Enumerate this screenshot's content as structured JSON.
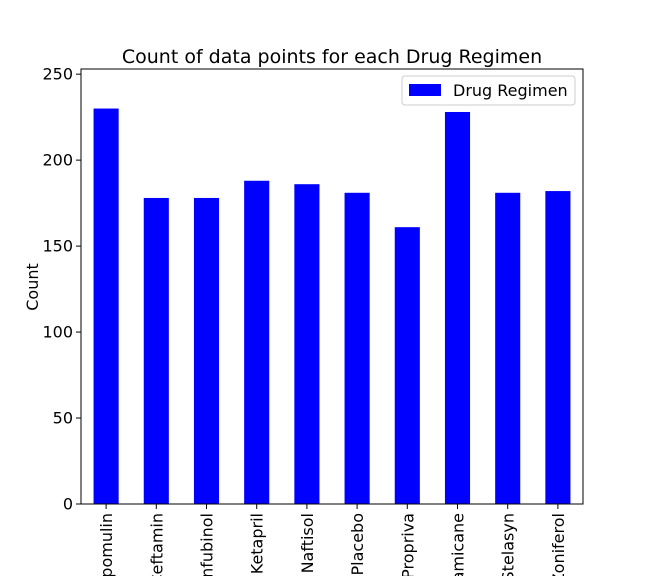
{
  "chart_data": {
    "type": "bar",
    "title": "Count of data points for each Drug Regimen",
    "xlabel": "",
    "ylabel": "Count",
    "ylim": [
      0,
      253
    ],
    "yticks": [
      0,
      50,
      100,
      150,
      200,
      250
    ],
    "categories": [
      "Capomulin",
      "Ceftamin",
      "Infubinol",
      "Ketapril",
      "Naftisol",
      "Placebo",
      "Propriva",
      "Ramicane",
      "Stelasyn",
      "Zoniferol"
    ],
    "series": [
      {
        "name": "Drug Regimen",
        "color": "#0000ff",
        "values": [
          230,
          178,
          178,
          188,
          186,
          181,
          161,
          228,
          181,
          182
        ]
      }
    ],
    "legend": "top-right",
    "grid": false
  }
}
